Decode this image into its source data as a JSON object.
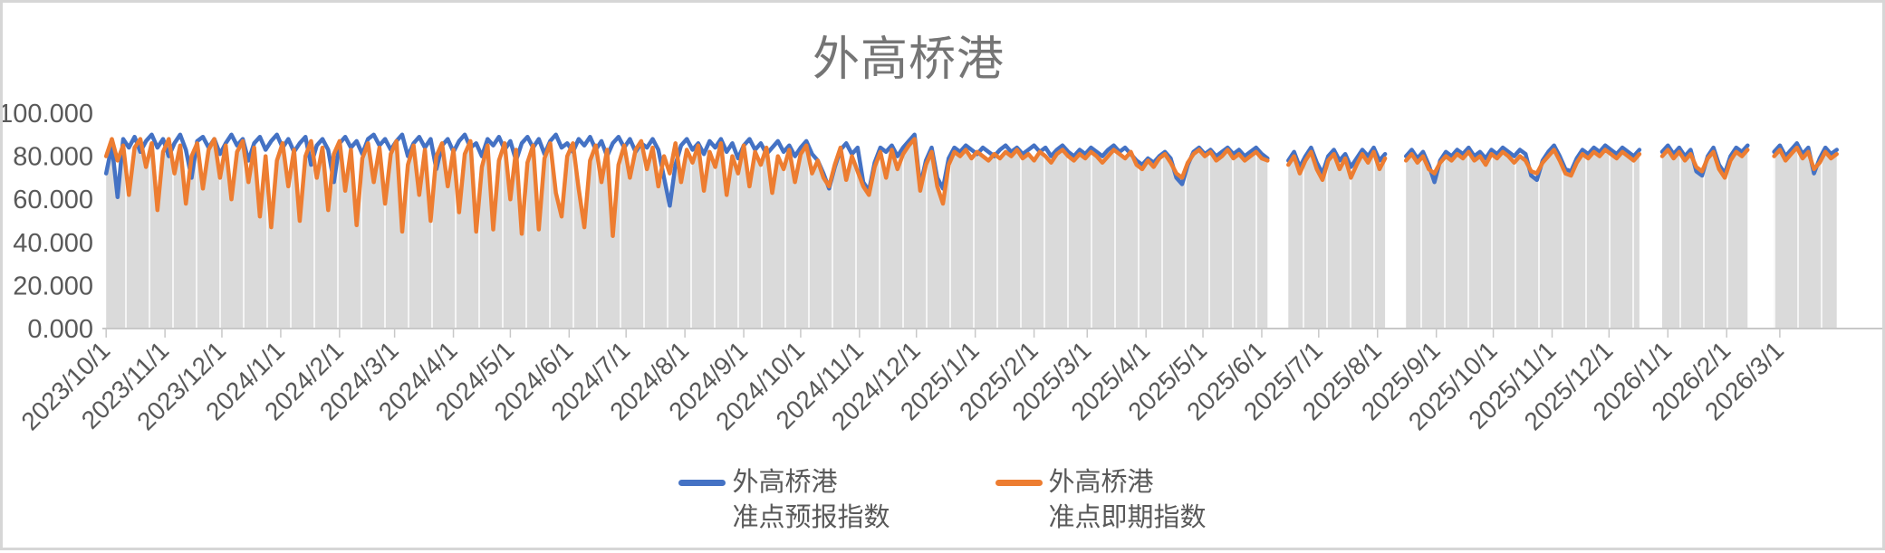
{
  "chart_data": {
    "type": "line",
    "title": "外高桥港",
    "xlabel": "",
    "ylabel": "",
    "legend_position": "bottom",
    "gridlines": "vertical-white-stripes-over-gray-area",
    "area_fill": {
      "color": "#dadada",
      "stripe_color": "#f5f5f5",
      "stripe_spacing_px": 26
    },
    "axis_color": "#c8c8c8",
    "text_color": "#595959",
    "y_axis": {
      "min": 0,
      "max": 100,
      "tick_labels": [
        "0.000",
        "20.000",
        "40.000",
        "60.000",
        "80.000",
        "100.000"
      ]
    },
    "x_axis": {
      "origin_date": "2023/10/1",
      "extent_days": 938,
      "tick_labels": [
        "2023/10/1",
        "2023/11/1",
        "2023/12/1",
        "2024/1/1",
        "2024/2/1",
        "2024/3/1",
        "2024/4/1",
        "2024/5/1",
        "2024/6/1",
        "2024/7/1",
        "2024/8/1",
        "2024/9/1",
        "2024/10/1",
        "2024/11/1",
        "2024/12/1",
        "2025/1/1",
        "2025/2/1",
        "2025/3/1",
        "2025/4/1",
        "2025/5/1",
        "2025/6/1",
        "2025/7/1",
        "2025/8/1",
        "2025/9/1",
        "2025/10/1",
        "2025/11/1",
        "2025/12/1",
        "2026/1/1",
        "2026/2/1",
        "2026/3/1"
      ]
    },
    "series": [
      {
        "name": "外高桥港准点预报指数",
        "legend_lines": [
          "外高桥港",
          "准点预报指数"
        ],
        "color": "#4472C4",
        "segments": [
          {
            "start_day": 0,
            "step": 3,
            "values": [
              72,
              85,
              61,
              88,
              84,
              89,
              82,
              87,
              90,
              84,
              88,
              80,
              86,
              90,
              83,
              70,
              87,
              89,
              84,
              88,
              81,
              86,
              90,
              85,
              88,
              78,
              86,
              89,
              83,
              87,
              90,
              84,
              88,
              82,
              86,
              89,
              76,
              85,
              88,
              83,
              68,
              86,
              89,
              84,
              87,
              81,
              88,
              90,
              85,
              88,
              83,
              87,
              90,
              80,
              86,
              89,
              84,
              88,
              74,
              85,
              88,
              82,
              87,
              90,
              84,
              86,
              80,
              88,
              85,
              89,
              83,
              87,
              78,
              86,
              89,
              84,
              88,
              81,
              87,
              90,
              84,
              86,
              82,
              88,
              85,
              89,
              83,
              87,
              80,
              86,
              89,
              84,
              88,
              82,
              86,
              84,
              88,
              83,
              70,
              57,
              76,
              85,
              88,
              83,
              86,
              81,
              87,
              84,
              88,
              82,
              86,
              79,
              85,
              88,
              83,
              86,
              81,
              84,
              87,
              82,
              85,
              80,
              84,
              87,
              81,
              78,
              72,
              65,
              75,
              83,
              86,
              81,
              84,
              68,
              64,
              77,
              84,
              82,
              85,
              80,
              84,
              87,
              90,
              66,
              78,
              84,
              70,
              65,
              79,
              84,
              82,
              85,
              83,
              81,
              84,
              82,
              80,
              83,
              85,
              82,
              84,
              81,
              83,
              85,
              82,
              84,
              80,
              83,
              85,
              82,
              80,
              83,
              81,
              84,
              82,
              80,
              83,
              85,
              82,
              84,
              81,
              78,
              76,
              79,
              77,
              80,
              82,
              79,
              70,
              67,
              76,
              82,
              84,
              81,
              83,
              80,
              82,
              84,
              81,
              83,
              80,
              82,
              84,
              81,
              79
            ]
          },
          {
            "start_day": 623,
            "step": 3,
            "values": [
              78,
              82,
              75,
              80,
              84,
              77,
              72,
              80,
              83,
              78,
              81,
              75,
              79,
              83,
              80,
              84,
              78,
              81
            ]
          },
          {
            "start_day": 685,
            "step": 3,
            "values": [
              80,
              83,
              79,
              82,
              76,
              68,
              78,
              82,
              80,
              83,
              81,
              84,
              80,
              82,
              79,
              83,
              81,
              84,
              82,
              80,
              83,
              81,
              71,
              69,
              78,
              82,
              85,
              80,
              74,
              73,
              79,
              83,
              81,
              84,
              82,
              85,
              83,
              81,
              84,
              82,
              80,
              83
            ]
          },
          {
            "start_day": 820,
            "step": 3,
            "values": [
              82,
              85,
              81,
              84,
              80,
              83,
              73,
              71,
              80,
              84,
              76,
              72,
              80,
              84,
              82,
              85
            ]
          },
          {
            "start_day": 879,
            "step": 3,
            "values": [
              82,
              85,
              80,
              83,
              86,
              81,
              84,
              72,
              79,
              84,
              81,
              83
            ]
          }
        ]
      },
      {
        "name": "外高桥港准点即期指数",
        "legend_lines": [
          "外高桥港",
          "准点即期指数"
        ],
        "color": "#ED7D31",
        "segments": [
          {
            "start_day": 0,
            "step": 3,
            "values": [
              80,
              88,
              78,
              85,
              62,
              84,
              88,
              75,
              86,
              55,
              82,
              88,
              72,
              85,
              58,
              80,
              86,
              65,
              83,
              88,
              70,
              85,
              60,
              82,
              87,
              68,
              84,
              52,
              80,
              47,
              78,
              86,
              66,
              83,
              50,
              80,
              87,
              70,
              84,
              55,
              81,
              87,
              64,
              83,
              48,
              79,
              86,
              68,
              84,
              58,
              81,
              87,
              45,
              76,
              85,
              62,
              83,
              50,
              80,
              86,
              66,
              83,
              54,
              81,
              87,
              45,
              75,
              85,
              46,
              78,
              86,
              60,
              83,
              44,
              77,
              85,
              46,
              79,
              86,
              63,
              52,
              80,
              86,
              65,
              47,
              78,
              85,
              68,
              83,
              43,
              76,
              85,
              70,
              83,
              87,
              74,
              84,
              66,
              80,
              72,
              86,
              68,
              83,
              77,
              85,
              64,
              82,
              75,
              86,
              62,
              80,
              72,
              85,
              66,
              82,
              76,
              84,
              63,
              80,
              74,
              83,
              68,
              81,
              85,
              72,
              78,
              70,
              66,
              76,
              84,
              69,
              80,
              73,
              66,
              62,
              75,
              82,
              70,
              83,
              74,
              81,
              85,
              88,
              64,
              76,
              82,
              66,
              58,
              76,
              82,
              80,
              83,
              79,
              82,
              80,
              78,
              81,
              79,
              82,
              80,
              83,
              79,
              81,
              78,
              82,
              80,
              77,
              81,
              83,
              80,
              78,
              81,
              79,
              82,
              80,
              77,
              80,
              83,
              81,
              79,
              82,
              76,
              74,
              78,
              75,
              79,
              81,
              77,
              72,
              70,
              77,
              81,
              83,
              80,
              82,
              78,
              80,
              83,
              79,
              81,
              78,
              80,
              82,
              79,
              78
            ]
          },
          {
            "start_day": 623,
            "step": 3,
            "values": [
              76,
              80,
              72,
              78,
              82,
              74,
              69,
              78,
              81,
              74,
              79,
              70,
              76,
              81,
              77,
              82,
              74,
              79
            ]
          },
          {
            "start_day": 685,
            "step": 3,
            "values": [
              78,
              81,
              77,
              80,
              74,
              72,
              77,
              80,
              78,
              81,
              79,
              82,
              78,
              80,
              76,
              81,
              79,
              82,
              80,
              77,
              80,
              78,
              73,
              72,
              77,
              80,
              83,
              78,
              72,
              71,
              77,
              81,
              79,
              82,
              80,
              83,
              81,
              79,
              82,
              80,
              78,
              81
            ]
          },
          {
            "start_day": 820,
            "step": 3,
            "values": [
              80,
              83,
              79,
              82,
              78,
              81,
              75,
              73,
              79,
              82,
              74,
              70,
              78,
              82,
              80,
              83
            ]
          },
          {
            "start_day": 879,
            "step": 3,
            "values": [
              80,
              83,
              78,
              81,
              84,
              79,
              82,
              74,
              77,
              82,
              79,
              81
            ]
          }
        ]
      }
    ]
  }
}
